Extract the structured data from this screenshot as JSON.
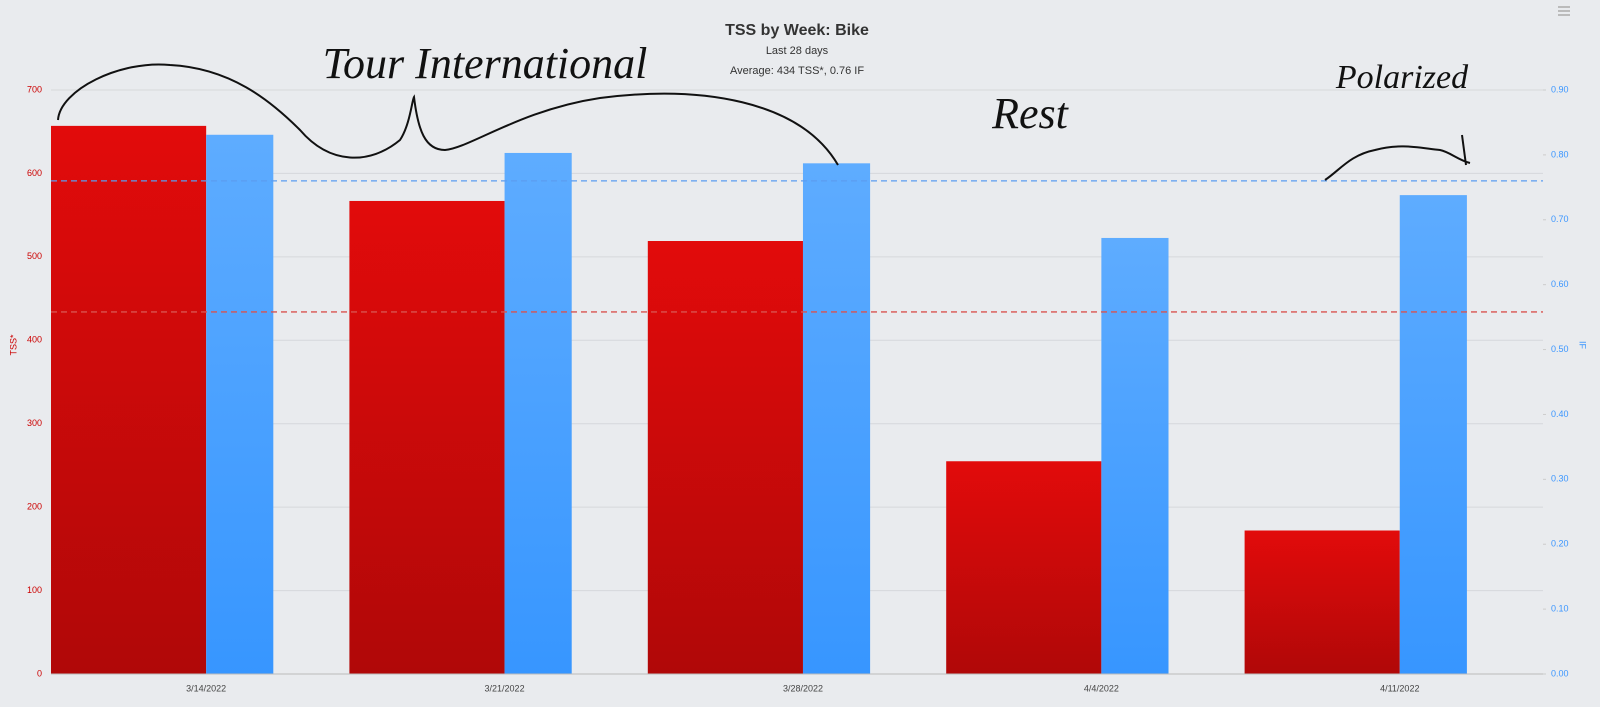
{
  "chart_data": {
    "type": "bar",
    "title": "TSS by Week: Bike",
    "subtitle": "Last 28 days",
    "summary": "Average: 434 TSS*, 0.76 IF",
    "y_label": "TSS*",
    "y2_label": "IF",
    "categories": [
      "3/14/2022",
      "3/21/2022",
      "3/28/2022",
      "4/4/2022",
      "4/11/2022"
    ],
    "series": [
      {
        "color": "#d80a0a",
        "values": [
          657,
          567,
          519,
          255,
          172
        ]
      },
      {
        "color": "#4aa3ff",
        "axis": "y2",
        "values": [
          0.831,
          0.803,
          0.787,
          0.672,
          0.738
        ]
      }
    ],
    "average_lines": [
      {
        "axis": "y",
        "value": 434,
        "color": "#d9534f"
      },
      {
        "axis": "y2",
        "value": 0.76,
        "color": "#5b9cf0"
      }
    ],
    "ylim": [
      0,
      700
    ],
    "yticks": [
      0,
      100,
      200,
      300,
      400,
      500,
      600,
      700
    ],
    "y2lim": [
      0,
      0.9
    ],
    "y2ticks": [
      {
        "value": 0,
        "label": "0.00"
      },
      {
        "value": 0.1,
        "label": "0.10"
      },
      {
        "value": 0.2,
        "label": "0.20"
      },
      {
        "value": 0.3,
        "label": "0.30"
      },
      {
        "value": 0.4,
        "label": "0.40"
      },
      {
        "value": 0.5,
        "label": "0.50"
      },
      {
        "value": 0.6,
        "label": "0.60"
      },
      {
        "value": 0.7,
        "label": "0.70"
      },
      {
        "value": 0.8,
        "label": "0.80"
      },
      {
        "value": 0.9,
        "label": "0.90"
      }
    ],
    "grid": true,
    "annotations": [
      "Tour International",
      "Rest",
      "Polarized"
    ]
  }
}
